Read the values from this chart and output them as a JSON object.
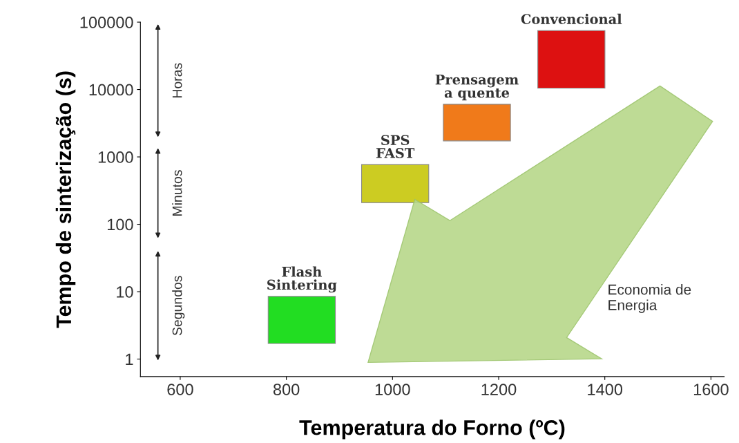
{
  "chart_data": {
    "type": "bar",
    "xlabel": "Temperatura do Forno (ºC)",
    "ylabel": "Tempo de sinterização (s)",
    "log": "y",
    "grid": false,
    "xlim": [
      525,
      1625
    ],
    "ylim": [
      0.55,
      100000
    ],
    "xticks": [
      600,
      800,
      1000,
      1200,
      1400,
      1600
    ],
    "yticks": [
      1,
      10,
      100,
      1000,
      10000,
      100000
    ],
    "x": [
      829,
      1005,
      1159,
      1337
    ],
    "base": [
      1.7,
      210,
      1730,
      10500
    ],
    "values": [
      6.8,
      560,
      4320,
      64500
    ],
    "colors": [
      "#22dd22",
      "#cccc22",
      "#f07a1a",
      "#dd1111"
    ],
    "annotations": [
      "Horas",
      "Minutos",
      "Segundos",
      {
        "text": "Flash\nSintering",
        "x": 829,
        "y": 8.5
      },
      {
        "text": "SPS\nFAST",
        "x": 1005,
        "y": 770
      },
      {
        "text": "Prensagem\na quente",
        "x": 1159,
        "y": 6050
      },
      {
        "text": "Convencional",
        "x": 1337,
        "y": 75000
      },
      "Economia de\nEnergia"
    ]
  }
}
